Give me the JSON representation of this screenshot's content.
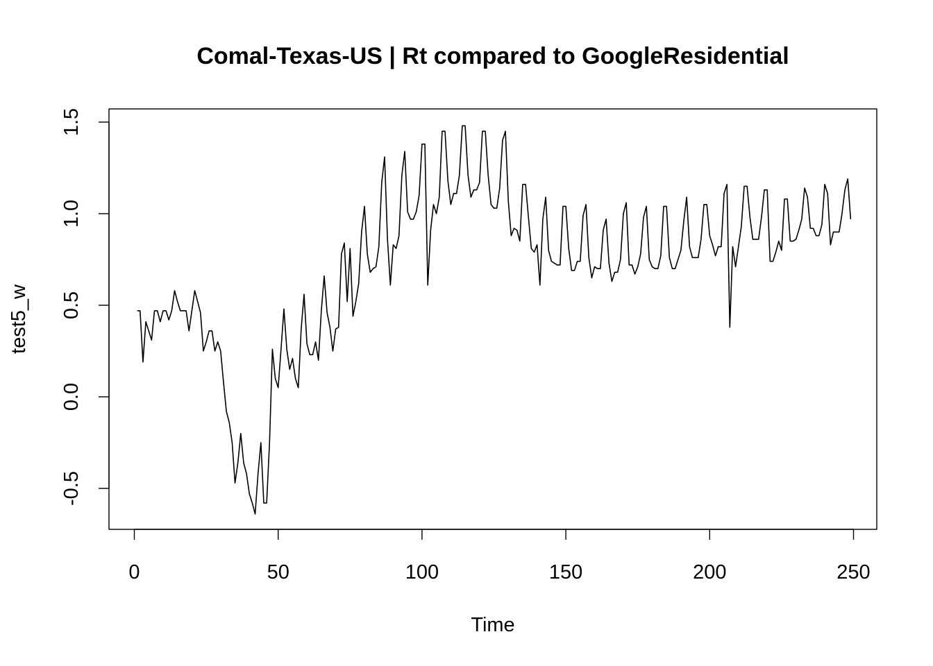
{
  "chart_data": {
    "type": "line",
    "title": "Comal-Texas-US | Rt compared to GoogleResidential",
    "xlabel": "Time",
    "ylabel": "test5_w",
    "xlim": [
      1,
      248
    ],
    "ylim": [
      -0.7,
      1.5
    ],
    "x_ticks": [
      0,
      50,
      100,
      150,
      200,
      250
    ],
    "x_tick_labels": [
      "0",
      "50",
      "100",
      "150",
      "200",
      "250"
    ],
    "y_ticks": [
      -0.5,
      0.0,
      0.5,
      1.0,
      1.5
    ],
    "y_tick_labels": [
      "-0.5",
      "0.0",
      "0.5",
      "1.0",
      "1.5"
    ],
    "grid": false,
    "series": [
      {
        "x_start": 1,
        "values": [
          0.47,
          0.47,
          0.19,
          0.41,
          0.36,
          0.31,
          0.47,
          0.47,
          0.41,
          0.47,
          0.47,
          0.42,
          0.47,
          0.58,
          0.52,
          0.47,
          0.47,
          0.47,
          0.36,
          0.47,
          0.58,
          0.52,
          0.46,
          0.25,
          0.3,
          0.36,
          0.36,
          0.25,
          0.3,
          0.25,
          0.08,
          -0.08,
          -0.14,
          -0.25,
          -0.47,
          -0.36,
          -0.2,
          -0.36,
          -0.42,
          -0.53,
          -0.58,
          -0.64,
          -0.42,
          -0.25,
          -0.58,
          -0.58,
          -0.25,
          0.26,
          0.1,
          0.05,
          0.26,
          0.48,
          0.26,
          0.15,
          0.21,
          0.1,
          0.05,
          0.37,
          0.56,
          0.29,
          0.23,
          0.23,
          0.3,
          0.2,
          0.47,
          0.66,
          0.46,
          0.38,
          0.25,
          0.37,
          0.38,
          0.78,
          0.84,
          0.52,
          0.81,
          0.44,
          0.52,
          0.62,
          0.9,
          1.04,
          0.78,
          0.68,
          0.7,
          0.71,
          0.82,
          1.17,
          1.31,
          0.86,
          0.61,
          0.83,
          0.81,
          0.88,
          1.21,
          1.34,
          1.01,
          0.97,
          0.97,
          1.01,
          1.1,
          1.38,
          1.38,
          0.61,
          0.91,
          1.05,
          1.0,
          1.09,
          1.45,
          1.45,
          1.18,
          1.05,
          1.11,
          1.11,
          1.21,
          1.48,
          1.48,
          1.21,
          1.09,
          1.13,
          1.13,
          1.17,
          1.45,
          1.45,
          1.21,
          1.05,
          1.03,
          1.03,
          1.14,
          1.4,
          1.45,
          1.07,
          0.88,
          0.92,
          0.91,
          0.85,
          1.16,
          1.16,
          0.98,
          0.81,
          0.79,
          0.83,
          0.61,
          0.97,
          1.09,
          0.8,
          0.74,
          0.73,
          0.72,
          0.72,
          1.04,
          1.04,
          0.81,
          0.69,
          0.69,
          0.74,
          0.74,
          0.99,
          1.05,
          0.76,
          0.65,
          0.71,
          0.7,
          0.7,
          0.91,
          0.97,
          0.73,
          0.63,
          0.68,
          0.68,
          0.75,
          1.0,
          1.06,
          0.72,
          0.72,
          0.67,
          0.71,
          0.78,
          0.98,
          1.04,
          0.75,
          0.71,
          0.7,
          0.7,
          0.77,
          1.04,
          1.04,
          0.76,
          0.7,
          0.7,
          0.75,
          0.8,
          0.96,
          1.09,
          0.82,
          0.76,
          0.76,
          0.76,
          0.86,
          1.05,
          1.05,
          0.88,
          0.83,
          0.77,
          0.82,
          0.82,
          1.11,
          1.16,
          0.38,
          0.82,
          0.71,
          0.82,
          0.93,
          1.15,
          1.15,
          0.98,
          0.86,
          0.86,
          0.86,
          0.98,
          1.13,
          1.13,
          0.74,
          0.74,
          0.79,
          0.85,
          0.8,
          1.08,
          1.08,
          0.85,
          0.85,
          0.86,
          0.91,
          0.97,
          1.14,
          1.09,
          0.92,
          0.92,
          0.88,
          0.88,
          0.94,
          1.16,
          1.11,
          0.83,
          0.9,
          0.9,
          0.9,
          1.0,
          1.13,
          1.19,
          0.97
        ]
      }
    ]
  }
}
